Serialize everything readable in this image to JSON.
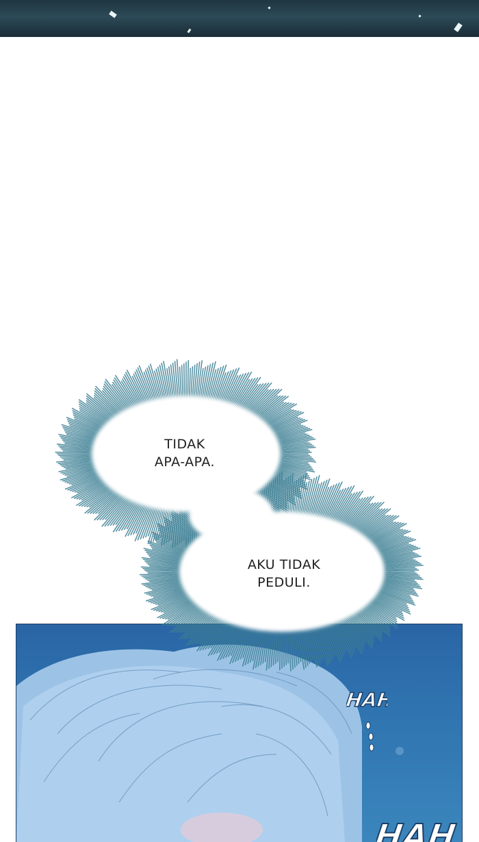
{
  "panel_top": {
    "kind": "dark-teal-scene-strip"
  },
  "speech_bubbles": [
    {
      "line1": "TIDAK",
      "line2": "APA-APA."
    },
    {
      "line1": "AKU TIDAK",
      "line2": "PEDULI."
    }
  ],
  "panel_bottom": {
    "kind": "blue-hair-closeup"
  },
  "sound_effects": {
    "top": "HAH",
    "bottom": "HAH"
  },
  "colors": {
    "bubble_glow": "#2f6a80",
    "panel_blue": "#2f74b0",
    "hair": "#a9cbe8"
  }
}
